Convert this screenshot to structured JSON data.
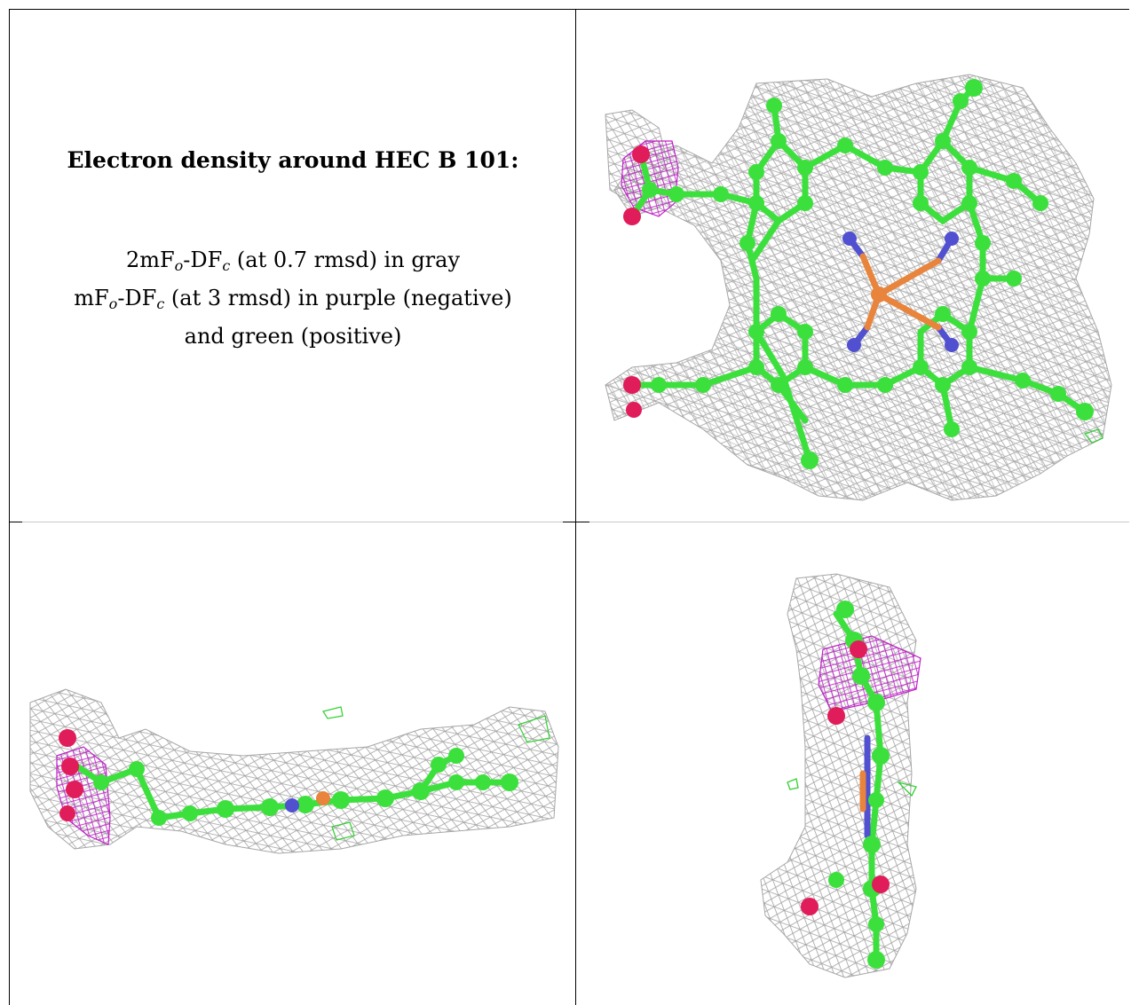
{
  "caption": {
    "title": "Electron density around HEC B 101:",
    "line1": {
      "pre": "2mF",
      "sub1": "o",
      "mid": "-DF",
      "sub2": "c",
      "post": " (at 0.7 rmsd) in gray"
    },
    "line2": {
      "pre": "mF",
      "sub1": "o",
      "mid": "-DF",
      "sub2": "c",
      "post": " (at 3 rmsd) in purple (negative)"
    },
    "line3": "and green (positive)"
  },
  "colors": {
    "carbon": "#3ce03c",
    "nitrogen": "#5050d0",
    "iron": "#e8843c",
    "oxygen": "#e01c5a",
    "density_gray": "#9a9a9a",
    "density_negative": "#c020c8",
    "density_positive": "#30d030"
  },
  "panels": [
    {
      "name": "top-view",
      "icon": "heme-molecule-top-view-icon"
    },
    {
      "name": "side-view",
      "icon": "heme-molecule-side-view-icon"
    },
    {
      "name": "edge-view",
      "icon": "heme-molecule-edge-view-icon"
    }
  ]
}
